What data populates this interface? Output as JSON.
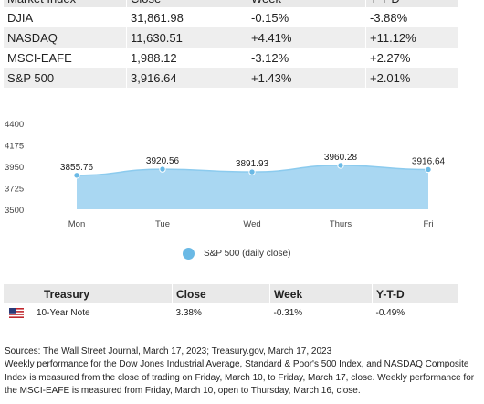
{
  "market_table": {
    "headers": [
      "Market Index",
      "Close",
      "Week",
      "Y-T-D"
    ],
    "rows": [
      [
        "DJIA",
        "31,861.98",
        "-0.15%",
        "-3.88%"
      ],
      [
        "NASDAQ",
        "11,630.51",
        "+4.41%",
        "+11.12%"
      ],
      [
        "MSCI-EAFE",
        "1,988.12",
        "-3.12%",
        "+2.27%"
      ],
      [
        "S&P 500",
        "3,916.64",
        "+1.43%",
        "+2.01%"
      ]
    ]
  },
  "chart_data": {
    "type": "area",
    "categories": [
      "Mon",
      "Tue",
      "Wed",
      "Thurs",
      "Fri"
    ],
    "series": [
      {
        "name": "S&P 500 (daily close)",
        "values": [
          3855.76,
          3920.56,
          3891.93,
          3960.28,
          3916.64
        ]
      }
    ],
    "data_labels": [
      "3855.76",
      "3920.56",
      "3891.93",
      "3960.28",
      "3916.64"
    ],
    "yticks": [
      3500,
      3725,
      3950,
      4175,
      4400
    ],
    "ylim": [
      3500,
      4400
    ],
    "legend_position": "bottom",
    "grid": false,
    "colors": {
      "area": "#a9d7f2",
      "line": "#8ccbee",
      "marker": "#6ab9e5"
    }
  },
  "legend": {
    "label": "S&P 500 (daily close)"
  },
  "treasury_table": {
    "headers": [
      "Treasury",
      "Close",
      "Week",
      "Y-T-D"
    ],
    "row": {
      "flag": "us-flag-icon",
      "name": "10-Year Note",
      "close": "3.38%",
      "week": "-0.31%",
      "ytd": "-0.49%"
    }
  },
  "notes": {
    "sources": "Sources: The Wall Street Journal, March 17, 2023; Treasury.gov, March 17, 2023",
    "body": "Weekly performance for the Dow Jones Industrial Average, Standard & Poor's 500 Index, and NASDAQ Composite Index is measured from the close of trading on Friday, March 10, to Friday, March 17, close. Weekly performance for the MSCI-EAFE is measured from Friday, March 10, open to Thursday, March 16, close."
  }
}
